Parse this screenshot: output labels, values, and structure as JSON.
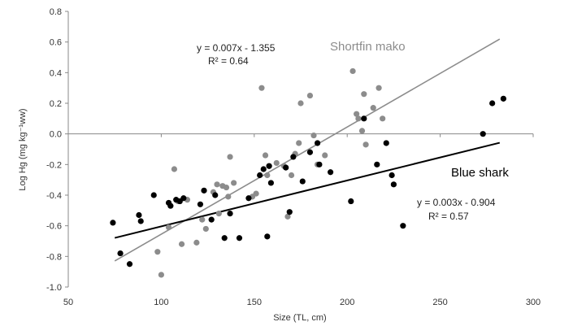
{
  "chart_data": {
    "type": "scatter",
    "title": "",
    "xlabel": "Size (TL, cm)",
    "ylabel": "Log Hg (mg kg⁻¹ww)",
    "xlim": [
      50,
      300
    ],
    "ylim": [
      -1.0,
      0.8
    ],
    "xticks": [
      50,
      100,
      150,
      200,
      250,
      300
    ],
    "yticks": [
      -1.0,
      -0.8,
      -0.6,
      -0.4,
      -0.2,
      0.0,
      0.2,
      0.4,
      0.6,
      0.8
    ],
    "ytick_labels": [
      "-1.0",
      "-0.8",
      "-0.6",
      "-0.4",
      "-0.2",
      "0.0",
      "0.2",
      "0.4",
      "0.6",
      "0.8"
    ],
    "grid": false,
    "series": [
      {
        "name": "Shortfin mako",
        "color": "#8c8c8c",
        "trend": {
          "slope": 0.007,
          "intercept": -1.355,
          "x_range": [
            75,
            282
          ]
        },
        "equation": "y = 0.007x - 1.355",
        "r2_label": "R² = 0.64",
        "points": [
          [
            98,
            -0.77
          ],
          [
            100,
            -0.92
          ],
          [
            104,
            -0.61
          ],
          [
            107,
            -0.23
          ],
          [
            109,
            -0.44
          ],
          [
            111,
            -0.72
          ],
          [
            114,
            -0.43
          ],
          [
            119,
            -0.71
          ],
          [
            122,
            -0.56
          ],
          [
            124,
            -0.62
          ],
          [
            128,
            -0.38
          ],
          [
            130,
            -0.33
          ],
          [
            131,
            -0.52
          ],
          [
            133,
            -0.34
          ],
          [
            135,
            -0.35
          ],
          [
            136,
            -0.41
          ],
          [
            137,
            -0.15
          ],
          [
            139,
            -0.32
          ],
          [
            149,
            -0.41
          ],
          [
            151,
            -0.39
          ],
          [
            154,
            0.3
          ],
          [
            156,
            -0.14
          ],
          [
            157,
            -0.27
          ],
          [
            158,
            -0.21
          ],
          [
            162,
            -0.19
          ],
          [
            166,
            -0.21
          ],
          [
            168,
            -0.54
          ],
          [
            170,
            -0.27
          ],
          [
            172,
            -0.13
          ],
          [
            174,
            -0.06
          ],
          [
            175,
            0.2
          ],
          [
            180,
            0.25
          ],
          [
            182,
            -0.01
          ],
          [
            184,
            -0.2
          ],
          [
            188,
            -0.14
          ],
          [
            203,
            0.41
          ],
          [
            205,
            0.13
          ],
          [
            206,
            0.1
          ],
          [
            208,
            0.02
          ],
          [
            209,
            0.26
          ],
          [
            210,
            -0.07
          ],
          [
            214,
            0.17
          ],
          [
            217,
            0.3
          ],
          [
            219,
            0.1
          ]
        ]
      },
      {
        "name": "Blue shark",
        "color": "#000000",
        "trend": {
          "slope": 0.003,
          "intercept": -0.904,
          "x_range": [
            75,
            282
          ]
        },
        "equation": "y = 0.003x - 0.904",
        "r2_label": "R² = 0.57",
        "points": [
          [
            74,
            -0.58
          ],
          [
            78,
            -0.78
          ],
          [
            83,
            -0.85
          ],
          [
            88,
            -0.53
          ],
          [
            89,
            -0.57
          ],
          [
            96,
            -0.4
          ],
          [
            104,
            -0.45
          ],
          [
            105,
            -0.47
          ],
          [
            108,
            -0.43
          ],
          [
            110,
            -0.44
          ],
          [
            112,
            -0.42
          ],
          [
            121,
            -0.46
          ],
          [
            123,
            -0.37
          ],
          [
            127,
            -0.56
          ],
          [
            129,
            -0.4
          ],
          [
            134,
            -0.68
          ],
          [
            137,
            -0.52
          ],
          [
            142,
            -0.68
          ],
          [
            147,
            -0.42
          ],
          [
            153,
            -0.27
          ],
          [
            155,
            -0.23
          ],
          [
            157,
            -0.67
          ],
          [
            158,
            -0.21
          ],
          [
            159,
            -0.32
          ],
          [
            167,
            -0.22
          ],
          [
            169,
            -0.51
          ],
          [
            171,
            -0.15
          ],
          [
            176,
            -0.31
          ],
          [
            180,
            -0.12
          ],
          [
            184,
            -0.06
          ],
          [
            185,
            -0.2
          ],
          [
            191,
            -0.25
          ],
          [
            202,
            -0.44
          ],
          [
            209,
            0.1
          ],
          [
            216,
            -0.2
          ],
          [
            221,
            -0.06
          ],
          [
            224,
            -0.27
          ],
          [
            225,
            -0.33
          ],
          [
            230,
            -0.6
          ],
          [
            273,
            0.0
          ],
          [
            278,
            0.2
          ],
          [
            284,
            0.23
          ]
        ]
      }
    ]
  }
}
